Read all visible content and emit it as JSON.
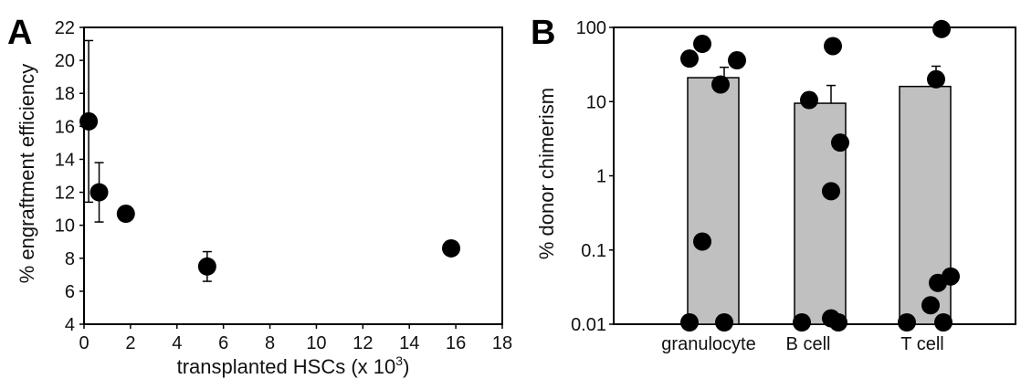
{
  "chart_data": [
    {
      "panel_label": "A",
      "type": "scatter",
      "xlabel_prefix": "transplanted HSCs (x 10",
      "xlabel_sup": "3",
      "xlabel_suffix": ")",
      "ylabel": "% engraftment efficiency",
      "xlim": [
        0,
        18
      ],
      "ylim": [
        4,
        22
      ],
      "xticks": [
        0,
        2,
        4,
        6,
        8,
        10,
        12,
        14,
        16,
        18
      ],
      "yticks": [
        4,
        6,
        8,
        10,
        12,
        14,
        16,
        18,
        20,
        22
      ],
      "points": [
        {
          "x": 0.2,
          "y": 16.3,
          "err": 4.9
        },
        {
          "x": 0.65,
          "y": 12.0,
          "err": 1.8
        },
        {
          "x": 1.8,
          "y": 10.7,
          "err": 0.3
        },
        {
          "x": 5.3,
          "y": 7.5,
          "err": 0.9
        },
        {
          "x": 15.8,
          "y": 8.6,
          "err": 0.2
        }
      ],
      "colors": {
        "marker": "#000000",
        "errorbar": "#000000"
      }
    },
    {
      "panel_label": "B",
      "type": "bar",
      "ylabel": "% donor chimerism",
      "yscale": "log",
      "ylim": [
        0.01,
        100
      ],
      "ytick_labels": [
        "0.01",
        "0.1",
        "1",
        "10",
        "100"
      ],
      "categories": [
        "granulocyte",
        "B cell",
        "T cell"
      ],
      "values": [
        21,
        9.5,
        16
      ],
      "errors_upper": [
        29,
        16.5,
        30
      ],
      "points": [
        [
          60,
          38,
          36,
          17,
          0.13,
          0.01,
          0.01
        ],
        [
          56,
          10.5,
          2.8,
          0.62,
          0.012,
          0.01,
          0.01
        ],
        [
          95,
          20,
          0.044,
          0.036,
          0.018,
          0.01,
          0.01
        ]
      ],
      "colors": {
        "bar_fill": "#c0c0c0",
        "bar_edge": "#000000",
        "marker": "#000000"
      }
    }
  ]
}
